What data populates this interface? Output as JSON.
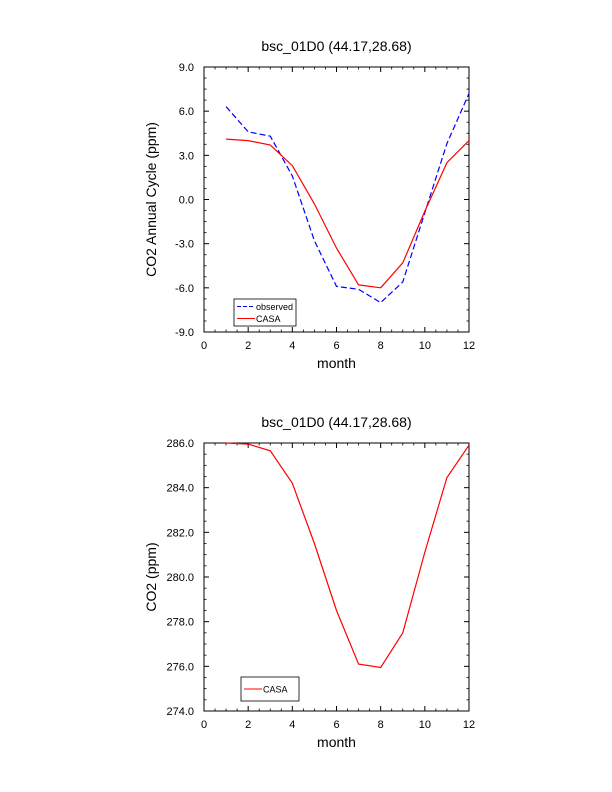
{
  "chart_data": [
    {
      "type": "line",
      "title": "bsc_01D0 (44.17,28.68)",
      "xlabel": "month",
      "ylabel": "CO2 Annual Cycle (ppm)",
      "xlim": [
        0,
        12
      ],
      "ylim": [
        -9,
        9
      ],
      "xticks": [
        0,
        2,
        4,
        6,
        8,
        10,
        12
      ],
      "xtick_labels": [
        "0",
        "2",
        "4",
        "6",
        "8",
        "10",
        "12"
      ],
      "yticks": [
        -9,
        -6,
        -3,
        0,
        3,
        6,
        9
      ],
      "ytick_labels": [
        "-9.0",
        "-6.0",
        "-3.0",
        "0.0",
        "3.0",
        "6.0",
        "9.0"
      ],
      "legend_position": "bottom-left",
      "x": [
        1,
        2,
        3,
        4,
        5,
        6,
        7,
        8,
        9,
        10,
        11,
        12
      ],
      "series": [
        {
          "name": "observed",
          "color": "#0000ff",
          "style": "dashed",
          "values": [
            6.3,
            4.6,
            4.3,
            1.6,
            -2.8,
            -5.9,
            -6.1,
            -7.0,
            -5.6,
            -0.9,
            3.8,
            7.2
          ]
        },
        {
          "name": "CASA",
          "color": "#ff0000",
          "style": "solid",
          "values": [
            4.1,
            4.0,
            3.7,
            2.3,
            -0.3,
            -3.3,
            -5.8,
            -6.0,
            -4.3,
            -0.8,
            2.5,
            4.0
          ]
        }
      ]
    },
    {
      "type": "line",
      "title": "bsc_01D0 (44.17,28.68)",
      "xlabel": "month",
      "ylabel": "CO2 (ppm)",
      "xlim": [
        0,
        12
      ],
      "ylim": [
        274,
        286
      ],
      "xticks": [
        0,
        2,
        4,
        6,
        8,
        10,
        12
      ],
      "xtick_labels": [
        "0",
        "2",
        "4",
        "6",
        "8",
        "10",
        "12"
      ],
      "yticks": [
        274,
        276,
        278,
        280,
        282,
        284,
        286
      ],
      "ytick_labels": [
        "274.0",
        "276.0",
        "278.0",
        "280.0",
        "282.0",
        "284.0",
        "286.0"
      ],
      "legend_position": "bottom-left",
      "x": [
        1,
        2,
        3,
        4,
        5,
        6,
        7,
        8,
        9,
        10,
        11,
        12
      ],
      "series": [
        {
          "name": "CASA",
          "color": "#ff0000",
          "style": "solid",
          "values": [
            286.0,
            285.95,
            285.65,
            284.2,
            281.5,
            278.5,
            276.1,
            275.95,
            277.5,
            281.1,
            284.45,
            285.9
          ]
        }
      ]
    }
  ]
}
